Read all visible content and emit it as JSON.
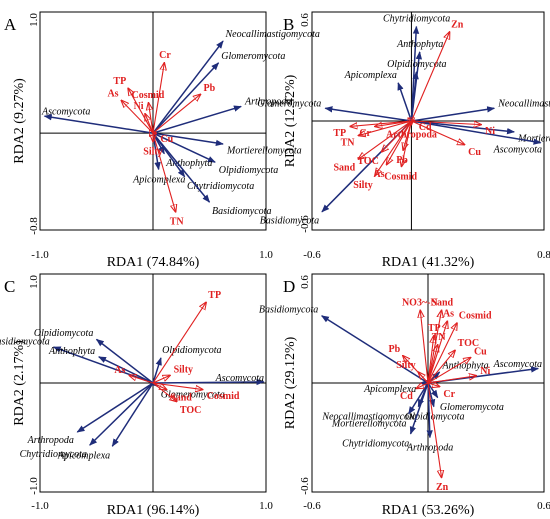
{
  "chart_data": [
    {
      "type": "biplot",
      "panel_label": "A",
      "xlabel": "RDA1 (74.84%)",
      "ylabel": "RDA2 (9.27%)",
      "xlim": [
        -1.0,
        1.0
      ],
      "ylim": [
        -0.8,
        1.0
      ],
      "xticks": [
        "-1.0",
        "1.0"
      ],
      "yticks": [
        "1.0",
        "-0.8"
      ],
      "species": [
        {
          "name": "Neocallimastigomycota",
          "x": 0.62,
          "y": 0.76
        },
        {
          "name": "Glomeromycota",
          "x": 0.58,
          "y": 0.58
        },
        {
          "name": "Arthropoda",
          "x": 0.78,
          "y": 0.22
        },
        {
          "name": "Ascomycota",
          "x": -0.96,
          "y": 0.14
        },
        {
          "name": "Mortierellomycota",
          "x": 0.62,
          "y": -0.09
        },
        {
          "name": "Olpidiomycota",
          "x": 0.55,
          "y": -0.24
        },
        {
          "name": "Anthophyta",
          "x": 0.1,
          "y": -0.17
        },
        {
          "name": "Apicomplexa",
          "x": 0.05,
          "y": -0.3
        },
        {
          "name": "Chytridiomycota",
          "x": 0.28,
          "y": -0.36
        },
        {
          "name": "Basidiomycota",
          "x": 0.5,
          "y": -0.57
        }
      ],
      "env": [
        {
          "name": "Cr",
          "x": 0.1,
          "y": 0.58
        },
        {
          "name": "TP",
          "x": -0.22,
          "y": 0.37
        },
        {
          "name": "As",
          "x": -0.28,
          "y": 0.27
        },
        {
          "name": "Cosmid",
          "x": -0.04,
          "y": 0.25
        },
        {
          "name": "Ni",
          "x": -0.07,
          "y": 0.16
        },
        {
          "name": "Pb",
          "x": 0.42,
          "y": 0.32
        },
        {
          "name": "Cu",
          "x": 0.03,
          "y": 0.0
        },
        {
          "name": "Silty",
          "x": 0.0,
          "y": -0.07
        },
        {
          "name": "TN",
          "x": 0.2,
          "y": -0.65
        }
      ]
    },
    {
      "type": "biplot",
      "panel_label": "B",
      "xlabel": "RDA1 (41.32%)",
      "ylabel": "RDA2 (12.42%)",
      "xlim": [
        -0.6,
        0.8
      ],
      "ylim": [
        -0.6,
        0.6
      ],
      "xticks": [
        "-0.6",
        "0.8"
      ],
      "yticks": [
        "0.6",
        "-0.6"
      ],
      "species": [
        {
          "name": "Chytridiomycota",
          "x": 0.03,
          "y": 0.52
        },
        {
          "name": "Anthophyta",
          "x": 0.05,
          "y": 0.38
        },
        {
          "name": "Olpidiomycota",
          "x": 0.03,
          "y": 0.27
        },
        {
          "name": "Apicomplexa",
          "x": -0.08,
          "y": 0.21
        },
        {
          "name": "Glomeromycota",
          "x": -0.52,
          "y": 0.07
        },
        {
          "name": "Neocallimastigomycota",
          "x": 0.5,
          "y": 0.07
        },
        {
          "name": "Mortierellomycota",
          "x": 0.62,
          "y": -0.06
        },
        {
          "name": "Ascomycota",
          "x": 0.78,
          "y": -0.12
        },
        {
          "name": "Basidiomycota",
          "x": -0.54,
          "y": -0.5
        }
      ],
      "env": [
        {
          "name": "Zn",
          "x": 0.23,
          "y": 0.49
        },
        {
          "name": "Ni",
          "x": 0.42,
          "y": -0.02
        },
        {
          "name": "Cu",
          "x": 0.32,
          "y": -0.13
        },
        {
          "name": "Cd",
          "x": 0.02,
          "y": 0.0
        },
        {
          "name": "Arthropoda",
          "x": 0.0,
          "y": -0.02
        },
        {
          "name": "TP",
          "x": -0.37,
          "y": -0.03
        },
        {
          "name": "Cr",
          "x": -0.22,
          "y": -0.03
        },
        {
          "name": "TN",
          "x": -0.32,
          "y": -0.08
        },
        {
          "name": "TOC",
          "x": -0.18,
          "y": -0.17
        },
        {
          "name": "Pb",
          "x": -0.05,
          "y": -0.16
        },
        {
          "name": "Sand",
          "x": -0.32,
          "y": -0.21
        },
        {
          "name": "As",
          "x": -0.15,
          "y": -0.24
        },
        {
          "name": "Cosmid",
          "x": -0.06,
          "y": -0.25
        },
        {
          "name": "Silty",
          "x": -0.22,
          "y": -0.3
        }
      ]
    },
    {
      "type": "biplot",
      "panel_label": "C",
      "xlabel": "RDA1 (96.14%)",
      "ylabel": "RDA2 (2.17%)",
      "xlim": [
        -1.0,
        1.0
      ],
      "ylim": [
        -1.0,
        1.0
      ],
      "xticks": [
        "-1.0",
        "1.0"
      ],
      "yticks": [
        "1.0",
        "-1.0"
      ],
      "species": [
        {
          "name": "Olpidiomycota",
          "x": -0.5,
          "y": 0.4
        },
        {
          "name": "Basidiomycota",
          "x": -0.88,
          "y": 0.33
        },
        {
          "name": "Anthophyta",
          "x": -0.48,
          "y": 0.24
        },
        {
          "name": "Olpidiomycota",
          "x": 0.07,
          "y": 0.23
        },
        {
          "name": "Glomeromycota",
          "x": 0.04,
          "y": -0.03
        },
        {
          "name": "Ascomycota",
          "x": 0.98,
          "y": 0.01
        },
        {
          "name": "Arthropoda",
          "x": -0.67,
          "y": -0.45
        },
        {
          "name": "Chytridiomycota",
          "x": -0.56,
          "y": -0.57
        },
        {
          "name": "Apicomplexa",
          "x": -0.36,
          "y": -0.58
        }
      ],
      "env": [
        {
          "name": "TP",
          "x": 0.47,
          "y": 0.74
        },
        {
          "name": "As",
          "x": -0.21,
          "y": 0.07
        },
        {
          "name": "Silty",
          "x": 0.15,
          "y": 0.07
        },
        {
          "name": "Sand",
          "x": 0.12,
          "y": -0.06
        },
        {
          "name": "Cosmid",
          "x": 0.44,
          "y": -0.06
        },
        {
          "name": "TOC",
          "x": 0.21,
          "y": -0.17
        }
      ]
    },
    {
      "type": "biplot",
      "panel_label": "D",
      "xlabel": "RDA1 (53.26%)",
      "ylabel": "RDA2 (29.12%)",
      "xlim": [
        -0.6,
        0.6
      ],
      "ylim": [
        -0.6,
        0.6
      ],
      "xticks": [
        "-0.6",
        "0.6"
      ],
      "yticks": [
        "0.6",
        "-0.6"
      ],
      "species": [
        {
          "name": "Basidiomycota",
          "x": -0.55,
          "y": 0.37
        },
        {
          "name": "Anthophyta",
          "x": 0.06,
          "y": 0.06
        },
        {
          "name": "Ascomycota",
          "x": 0.57,
          "y": 0.08
        },
        {
          "name": "Apicomplexa",
          "x": -0.04,
          "y": 0.0
        },
        {
          "name": "Glomeromycota",
          "x": 0.05,
          "y": -0.08
        },
        {
          "name": "Neocallimastigomycota",
          "x": -0.05,
          "y": -0.13
        },
        {
          "name": "Olpidiomycota",
          "x": 0.03,
          "y": -0.13
        },
        {
          "name": "Mortierellomycota",
          "x": -0.1,
          "y": -0.17
        },
        {
          "name": "Chytridiomycota",
          "x": -0.09,
          "y": -0.28
        },
        {
          "name": "Arthropoda",
          "x": 0.01,
          "y": -0.3
        }
      ],
      "env": [
        {
          "name": "NO3~-N",
          "x": -0.04,
          "y": 0.4
        },
        {
          "name": "Sand",
          "x": 0.07,
          "y": 0.4
        },
        {
          "name": "As",
          "x": 0.1,
          "y": 0.34
        },
        {
          "name": "Cosmid",
          "x": 0.15,
          "y": 0.33
        },
        {
          "name": "TP",
          "x": 0.03,
          "y": 0.26
        },
        {
          "name": "TN",
          "x": 0.05,
          "y": 0.21
        },
        {
          "name": "TOC",
          "x": 0.14,
          "y": 0.18
        },
        {
          "name": "Cu",
          "x": 0.22,
          "y": 0.14
        },
        {
          "name": "Pb",
          "x": -0.13,
          "y": 0.15
        },
        {
          "name": "Silty",
          "x": -0.05,
          "y": 0.06
        },
        {
          "name": "Cd",
          "x": -0.06,
          "y": -0.03
        },
        {
          "name": "Cr",
          "x": 0.06,
          "y": -0.02
        },
        {
          "name": "Ni",
          "x": 0.25,
          "y": 0.04
        },
        {
          "name": "Zn",
          "x": 0.07,
          "y": -0.52
        }
      ]
    }
  ],
  "colors": {
    "species_arrow": "#1f2d7a",
    "env_arrow": "#e02020",
    "axis": "#000000"
  }
}
